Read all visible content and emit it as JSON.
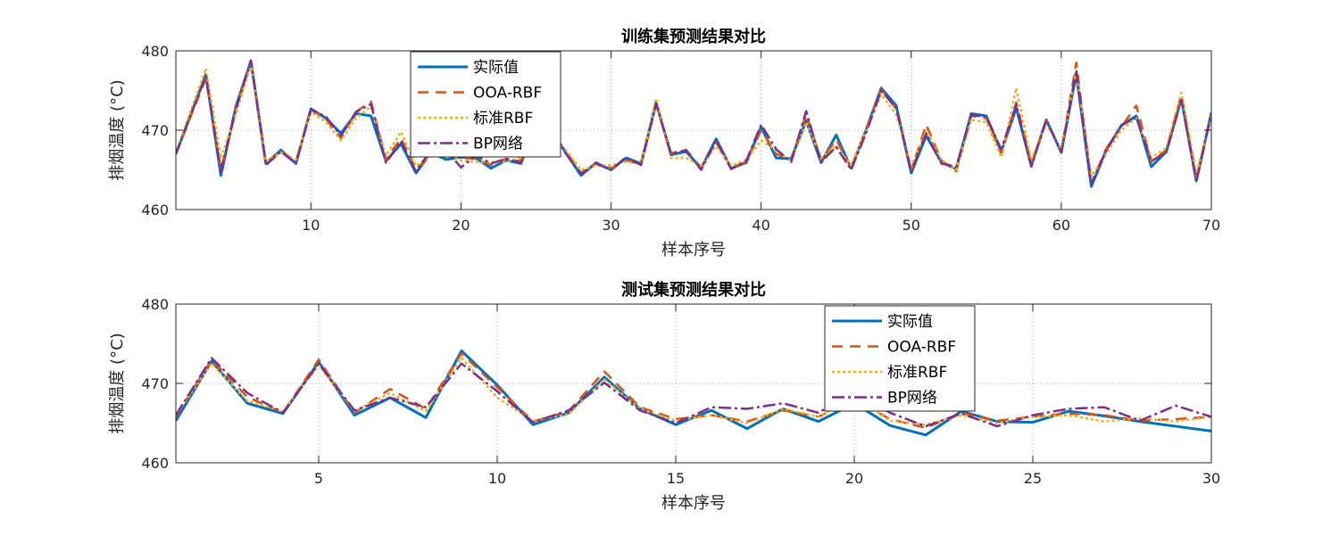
{
  "chart_data": [
    {
      "type": "line",
      "title": "训练集预测结果对比",
      "xlabel": "样本序号",
      "ylabel": "排烟温度 (°C)",
      "xlim": [
        1,
        70
      ],
      "ylim": [
        460,
        480
      ],
      "xticks": [
        10,
        20,
        30,
        40,
        50,
        60,
        70
      ],
      "yticks": [
        460,
        470,
        480
      ],
      "grid": true,
      "legend_position": "top-center",
      "x": [
        1,
        2,
        3,
        4,
        5,
        6,
        7,
        8,
        9,
        10,
        11,
        12,
        13,
        14,
        15,
        16,
        17,
        18,
        19,
        20,
        21,
        22,
        23,
        24,
        25,
        26,
        27,
        28,
        29,
        30,
        31,
        32,
        33,
        34,
        35,
        36,
        37,
        38,
        39,
        40,
        41,
        42,
        43,
        44,
        45,
        46,
        47,
        48,
        49,
        50,
        51,
        52,
        53,
        54,
        55,
        56,
        57,
        58,
        59,
        60,
        61,
        62,
        63,
        64,
        65,
        66,
        67,
        68,
        69,
        70
      ],
      "series": [
        {
          "name": "实际值",
          "color": "#0072BD",
          "dash": "solid",
          "width": 3,
          "values": [
            467,
            472,
            477,
            464.3,
            473,
            478.7,
            465.8,
            467.5,
            465.8,
            472.7,
            471.5,
            469.6,
            472.1,
            471.8,
            466.1,
            468.3,
            464.6,
            467.2,
            466.3,
            466.6,
            466.5,
            465.2,
            466.2,
            465.8,
            470.9,
            470.1,
            467.1,
            464.3,
            465.9,
            465.0,
            466.5,
            465.8,
            473.5,
            466.9,
            467.3,
            465.2,
            468.9,
            465.2,
            465.9,
            470.4,
            466.5,
            466.4,
            471.2,
            465.9,
            469.4,
            465.2,
            470.1,
            475.3,
            473.1,
            464.6,
            469.3,
            466.0,
            465.1,
            472.1,
            471.8,
            467.3,
            472.8,
            465.5,
            471.3,
            467.2,
            477.1,
            462.9,
            467.5,
            470.6,
            471.8,
            465.4,
            467.3,
            474.0,
            463.6,
            472.2
          ]
        },
        {
          "name": "OOA-RBF",
          "color": "#D95319",
          "dash": "12 8",
          "width": 2.5,
          "values": [
            467,
            471.8,
            476.5,
            465.0,
            472.8,
            478.6,
            465.8,
            467.4,
            466.0,
            472.6,
            471.4,
            469.0,
            472.3,
            473.6,
            466.3,
            469.0,
            465.0,
            467.0,
            466.8,
            466.5,
            466.4,
            465.6,
            466.4,
            466.1,
            470.7,
            469.8,
            467.3,
            464.6,
            465.8,
            465.2,
            466.2,
            465.7,
            473.2,
            467.1,
            467.5,
            465.3,
            468.5,
            465.3,
            466.0,
            470.0,
            467.0,
            466.3,
            472.0,
            466.2,
            468.8,
            465.3,
            470.2,
            475.1,
            472.7,
            465.0,
            470.7,
            466.2,
            464.8,
            471.8,
            471.5,
            467.0,
            473.5,
            465.8,
            471.2,
            467.4,
            478.5,
            463.3,
            467.7,
            470.4,
            473.1,
            466.0,
            467.5,
            474.5,
            464.0,
            472.0
          ]
        },
        {
          "name": "标准RBF",
          "color": "#EDB120",
          "dash": "3 3",
          "width": 2.5,
          "values": [
            467,
            472.5,
            477.8,
            466.5,
            472.0,
            478.3,
            466.0,
            467.2,
            466.3,
            472.3,
            471.0,
            468.7,
            471.5,
            473.0,
            466.8,
            469.8,
            465.5,
            466.8,
            467.2,
            466.2,
            466.0,
            466.0,
            466.0,
            466.5,
            470.0,
            469.0,
            467.5,
            465.0,
            465.5,
            465.6,
            466.0,
            465.8,
            474.0,
            466.5,
            466.5,
            465.5,
            468.0,
            465.5,
            466.3,
            468.7,
            467.5,
            466.0,
            471.0,
            466.5,
            468.0,
            465.6,
            470.0,
            474.5,
            472.0,
            465.5,
            470.0,
            466.3,
            465.0,
            471.3,
            471.0,
            466.6,
            475.3,
            466.2,
            470.8,
            467.6,
            477.5,
            464.2,
            467.0,
            470.0,
            471.5,
            466.5,
            467.8,
            474.7,
            464.5,
            471.6
          ]
        },
        {
          "name": "BP网络",
          "color": "#7E2F8E",
          "dash": "14 4 3 4",
          "width": 2.5,
          "values": [
            467,
            472,
            476.8,
            464.8,
            472.6,
            478.8,
            465.6,
            467.3,
            465.8,
            472.6,
            471.7,
            469.3,
            472.3,
            473.3,
            465.9,
            468.6,
            464.8,
            467.5,
            467.5,
            465.3,
            466.8,
            465.8,
            466.4,
            465.9,
            470.2,
            470.3,
            467.0,
            464.5,
            465.8,
            465.0,
            466.6,
            465.6,
            473.3,
            467.0,
            467.5,
            465.0,
            468.7,
            465.1,
            466.1,
            470.7,
            467.6,
            466.0,
            472.4,
            466.0,
            467.9,
            465.0,
            469.7,
            475.0,
            472.8,
            464.8,
            469.6,
            465.8,
            465.4,
            471.9,
            471.7,
            467.6,
            473.2,
            465.4,
            471.3,
            467.2,
            477.6,
            463.2,
            467.5,
            470.6,
            471.6,
            466.1,
            467.2,
            473.8,
            463.5,
            472.1
          ]
        }
      ]
    },
    {
      "type": "line",
      "title": "测试集预测结果对比",
      "xlabel": "样本序号",
      "ylabel": "排烟温度 (°C)",
      "xlim": [
        1,
        30
      ],
      "ylim": [
        460,
        480
      ],
      "xticks": [
        5,
        10,
        15,
        20,
        25,
        30
      ],
      "yticks": [
        460,
        470,
        480
      ],
      "grid": true,
      "legend_position": "top-right",
      "x": [
        1,
        2,
        3,
        4,
        5,
        6,
        7,
        8,
        9,
        10,
        11,
        12,
        13,
        14,
        15,
        16,
        17,
        18,
        19,
        20,
        21,
        22,
        23,
        24,
        25,
        26,
        27,
        28,
        29,
        30
      ],
      "series": [
        {
          "name": "实际值",
          "color": "#0072BD",
          "dash": "solid",
          "width": 3,
          "values": [
            465.3,
            472.8,
            467.5,
            466.2,
            472.7,
            466.0,
            468.2,
            465.7,
            474.1,
            469.8,
            464.8,
            466.3,
            470.8,
            466.8,
            464.8,
            466.6,
            464.3,
            466.8,
            465.2,
            467.5,
            464.7,
            463.5,
            466.5,
            465.2,
            465.1,
            466.5,
            465.9,
            465.2,
            464.6,
            464.0
          ]
        },
        {
          "name": "OOA-RBF",
          "color": "#D95319",
          "dash": "12 8",
          "width": 2.5,
          "values": [
            465.8,
            473.0,
            468.3,
            466.3,
            473.0,
            466.3,
            469.3,
            466.8,
            473.8,
            469.5,
            465.2,
            466.5,
            471.5,
            467.0,
            465.5,
            466.0,
            465.2,
            466.6,
            465.8,
            468.0,
            465.5,
            464.4,
            466.3,
            465.3,
            465.8,
            466.2,
            466.0,
            465.3,
            465.5,
            465.8
          ]
        },
        {
          "name": "标准RBF",
          "color": "#EDB120",
          "dash": "3 3",
          "width": 2.5,
          "values": [
            466.0,
            472.5,
            467.8,
            466.5,
            472.3,
            466.5,
            468.8,
            466.5,
            473.2,
            468.2,
            465.3,
            466.1,
            470.5,
            466.8,
            465.3,
            466.0,
            465.0,
            466.8,
            465.8,
            468.3,
            465.3,
            464.8,
            466.0,
            465.0,
            465.8,
            466.0,
            465.2,
            465.6,
            465.2,
            465.8
          ]
        },
        {
          "name": "BP网络",
          "color": "#7E2F8E",
          "dash": "14 4 3 4",
          "width": 2.5,
          "values": [
            466.0,
            473.2,
            468.8,
            466.3,
            472.5,
            466.6,
            468.2,
            467.0,
            472.5,
            469.0,
            465.1,
            466.6,
            470.1,
            466.6,
            465.0,
            467.0,
            466.8,
            467.5,
            466.3,
            469.0,
            466.3,
            464.6,
            466.2,
            464.6,
            466.0,
            466.8,
            467.0,
            465.3,
            467.2,
            465.8
          ]
        }
      ]
    }
  ]
}
